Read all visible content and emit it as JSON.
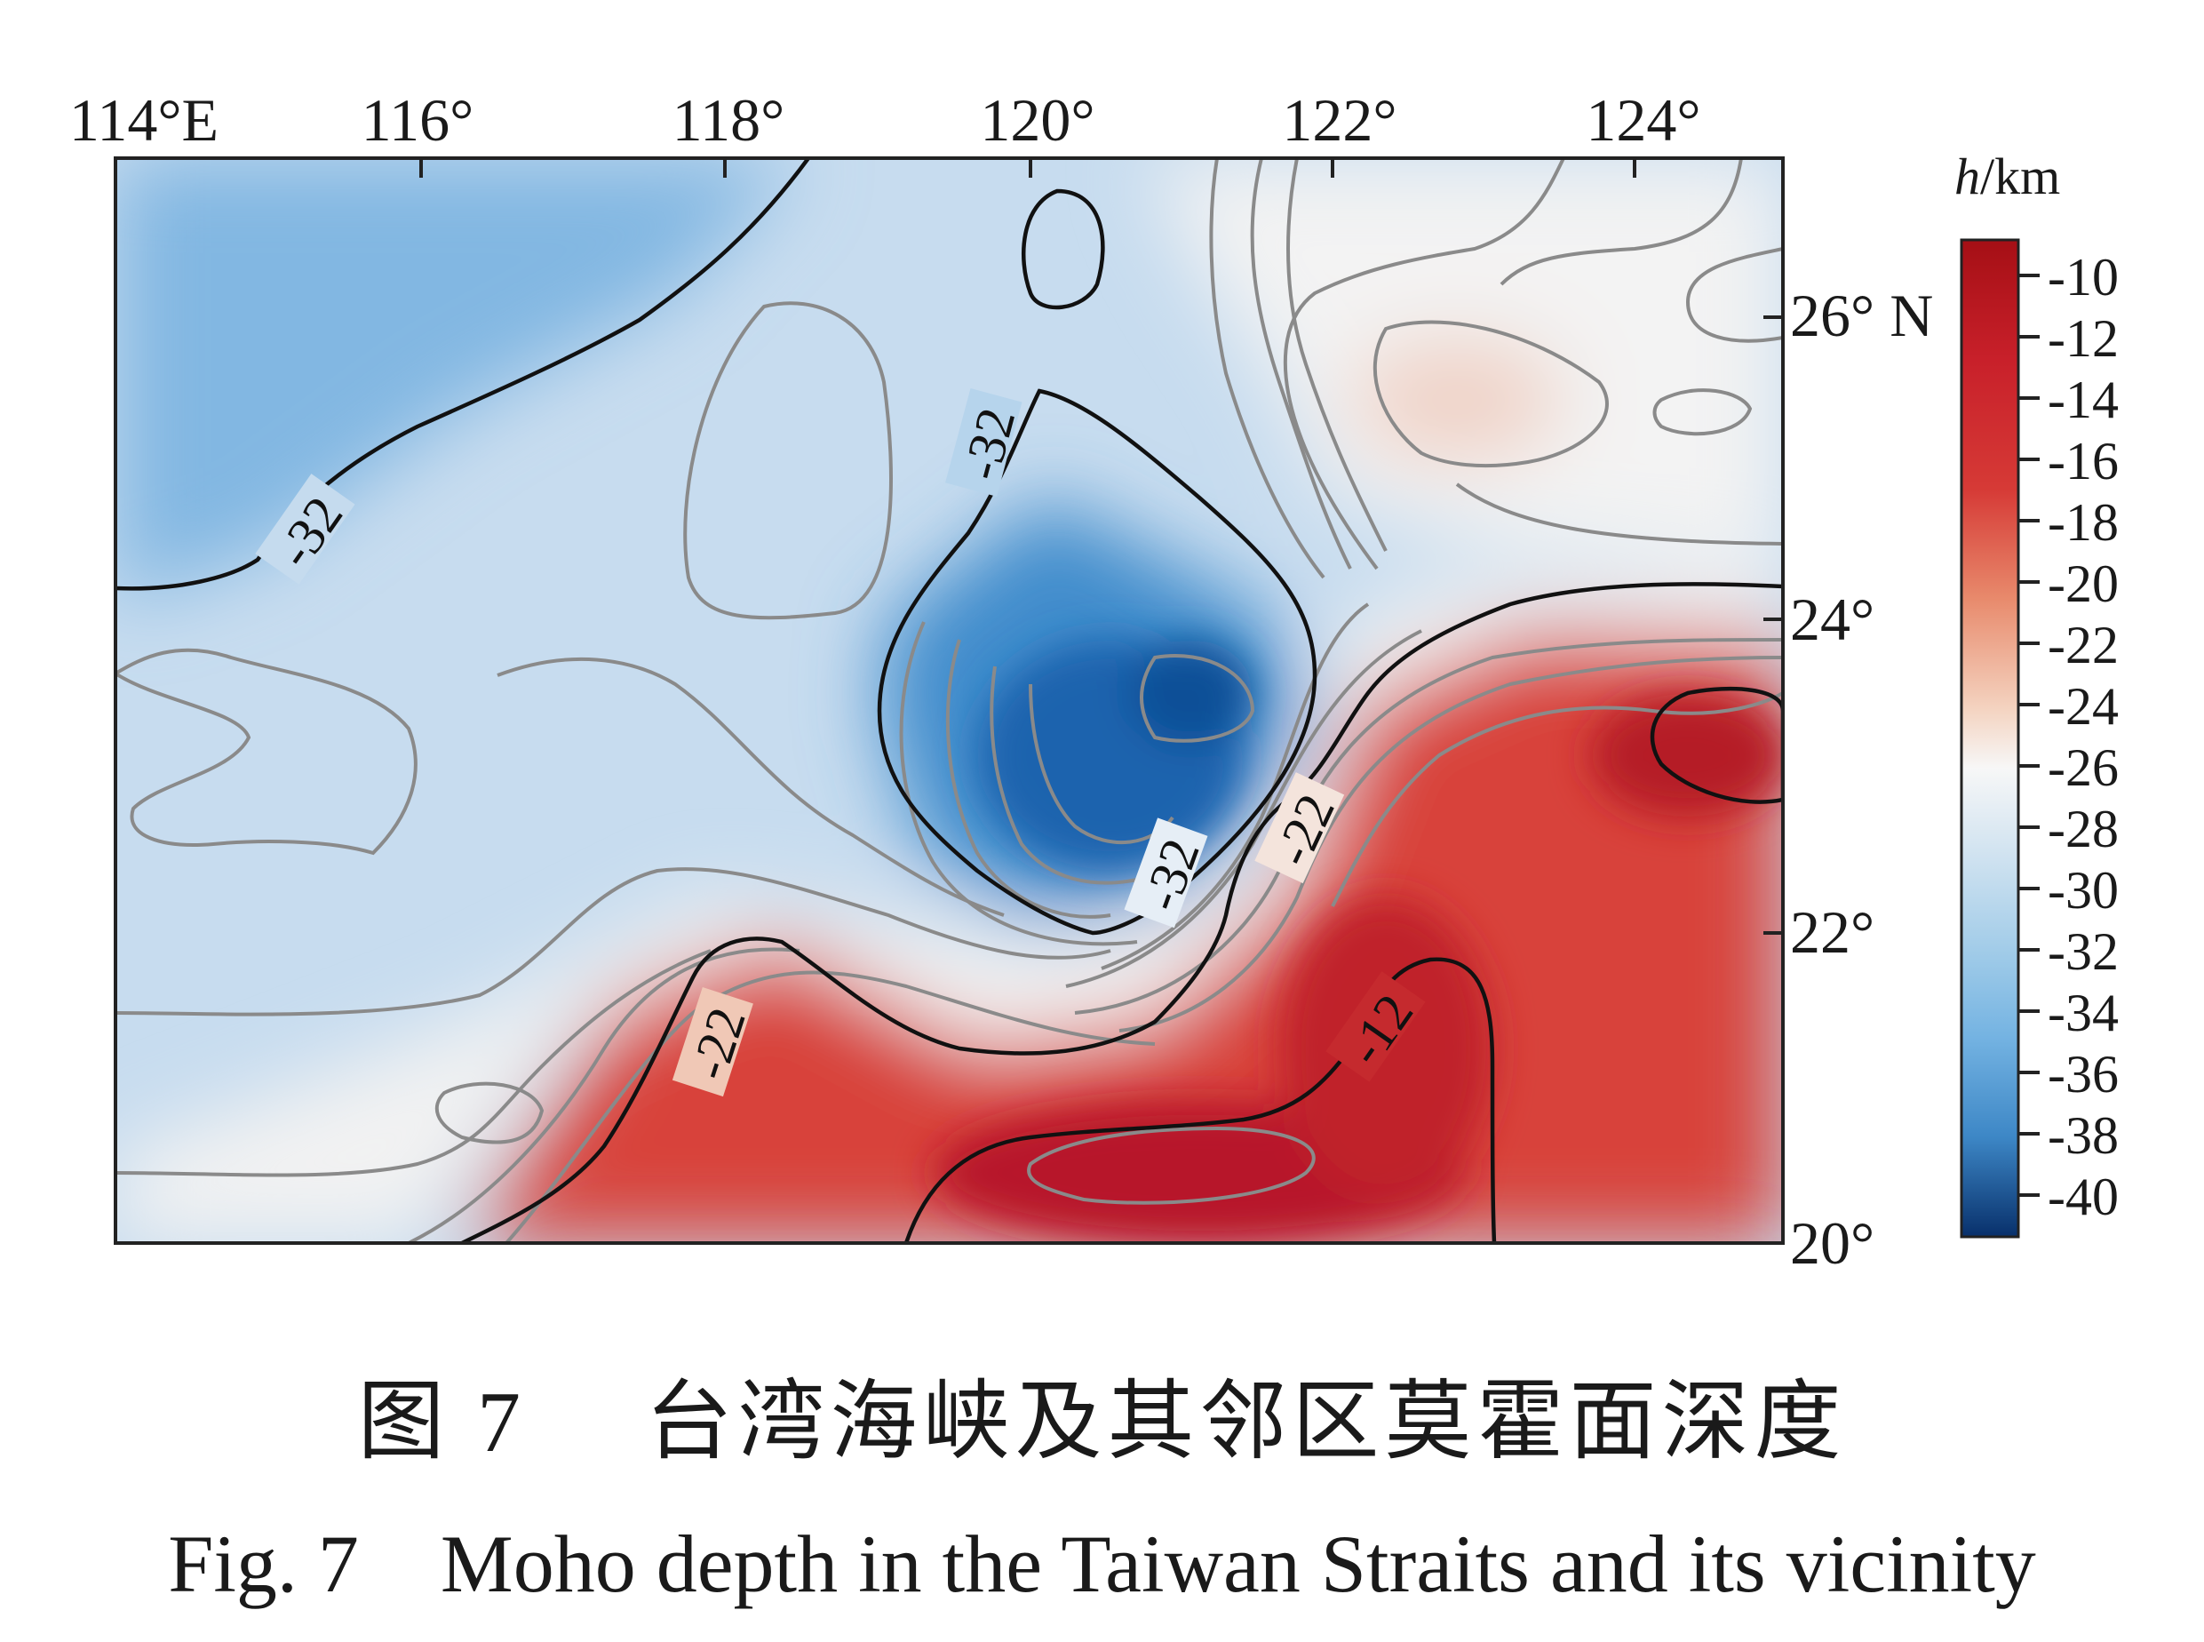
{
  "map": {
    "x_ticks": [
      "114°E",
      "116°",
      "118°",
      "120°",
      "122°",
      "124°"
    ],
    "y_ticks": [
      "26° N",
      "24°",
      "22°",
      "20°"
    ],
    "contour_labels": [
      "-32",
      "-32",
      "-32",
      "-22",
      "-22",
      "-12"
    ]
  },
  "colorbar": {
    "unit_italic": "h",
    "unit_rest": "/km",
    "ticks": [
      "-10",
      "-12",
      "-14",
      "-16",
      "-18",
      "-20",
      "-22",
      "-24",
      "-26",
      "-28",
      "-30",
      "-32",
      "-34",
      "-36",
      "-38",
      "-40"
    ],
    "colors": [
      "#08306b",
      "#2c7bbf",
      "#74b3e2",
      "#c5dcef",
      "#f7f7f7",
      "#f0c4a8",
      "#e07a5f",
      "#d63a36",
      "#a50f15"
    ]
  },
  "caption": {
    "chinese": "图 7　 台湾海峡及其邻区莫霍面深度",
    "english": "Fig. 7　Moho depth in the Taiwan Straits and its vicinity"
  }
}
